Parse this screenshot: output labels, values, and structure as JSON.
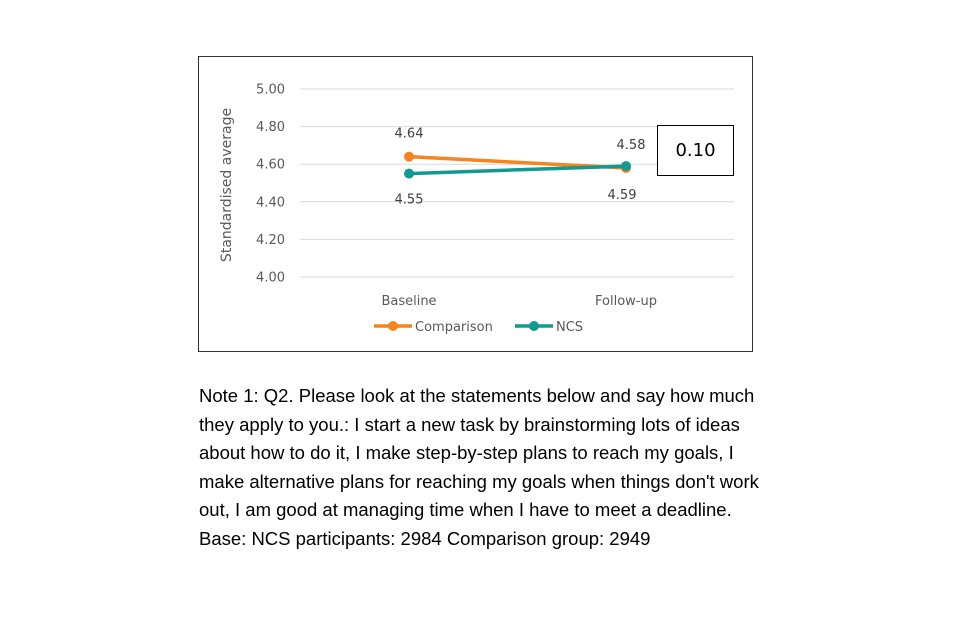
{
  "chart_data": {
    "type": "line",
    "categories": [
      "Baseline",
      "Follow-up"
    ],
    "series": [
      {
        "name": "Comparison",
        "values": [
          4.64,
          4.58
        ],
        "color": "#F7841E"
      },
      {
        "name": "NCS",
        "values": [
          4.55,
          4.59
        ],
        "color": "#119A91"
      }
    ],
    "ylabel": "Standardised average",
    "ylim": [
      4.0,
      5.0
    ],
    "yticks": [
      "4.00",
      "4.20",
      "4.40",
      "4.60",
      "4.80",
      "5.00"
    ],
    "grid": true,
    "legend": "bottom-center",
    "difference_label": "0.10"
  },
  "note": "Note 1: Q2. Please look at the statements below and say how much they apply to you.: I start a new task by brainstorming lots of ideas about how to do it, I make step-by-step plans to reach my goals, I make alternative plans for reaching my goals when things don't work out, I am good at managing time when I have to meet a deadline. Base: NCS participants: 2984 Comparison group: 2949"
}
